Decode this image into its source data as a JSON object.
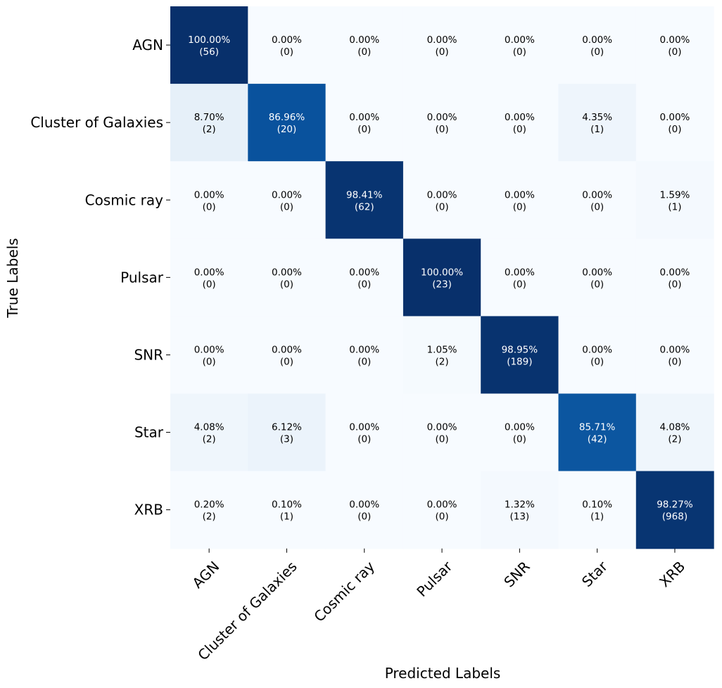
{
  "chart_data": {
    "type": "heatmap",
    "xlabel": "Predicted Labels",
    "ylabel": "True Labels",
    "x_categories": [
      "AGN",
      "Cluster of Galaxies",
      "Cosmic ray",
      "Pulsar",
      "SNR",
      "Star",
      "XRB"
    ],
    "y_categories": [
      "AGN",
      "Cluster of Galaxies",
      "Cosmic ray",
      "Pulsar",
      "SNR",
      "Star",
      "XRB"
    ],
    "colormap": "Blues",
    "colorbar": false,
    "percent_labels": [
      [
        "100.00%",
        "0.00%",
        "0.00%",
        "0.00%",
        "0.00%",
        "0.00%",
        "0.00%"
      ],
      [
        "8.70%",
        "86.96%",
        "0.00%",
        "0.00%",
        "0.00%",
        "4.35%",
        "0.00%"
      ],
      [
        "0.00%",
        "0.00%",
        "98.41%",
        "0.00%",
        "0.00%",
        "0.00%",
        "1.59%"
      ],
      [
        "0.00%",
        "0.00%",
        "0.00%",
        "100.00%",
        "0.00%",
        "0.00%",
        "0.00%"
      ],
      [
        "0.00%",
        "0.00%",
        "0.00%",
        "1.05%",
        "98.95%",
        "0.00%",
        "0.00%"
      ],
      [
        "4.08%",
        "6.12%",
        "0.00%",
        "0.00%",
        "0.00%",
        "85.71%",
        "4.08%"
      ],
      [
        "0.20%",
        "0.10%",
        "0.00%",
        "0.00%",
        "1.32%",
        "0.10%",
        "98.27%"
      ]
    ],
    "counts": [
      [
        56,
        0,
        0,
        0,
        0,
        0,
        0
      ],
      [
        2,
        20,
        0,
        0,
        0,
        1,
        0
      ],
      [
        0,
        0,
        62,
        0,
        0,
        0,
        1
      ],
      [
        0,
        0,
        0,
        23,
        0,
        0,
        0
      ],
      [
        0,
        0,
        0,
        2,
        189,
        0,
        0
      ],
      [
        2,
        3,
        0,
        0,
        0,
        42,
        2
      ],
      [
        2,
        1,
        0,
        0,
        13,
        1,
        968
      ]
    ]
  }
}
